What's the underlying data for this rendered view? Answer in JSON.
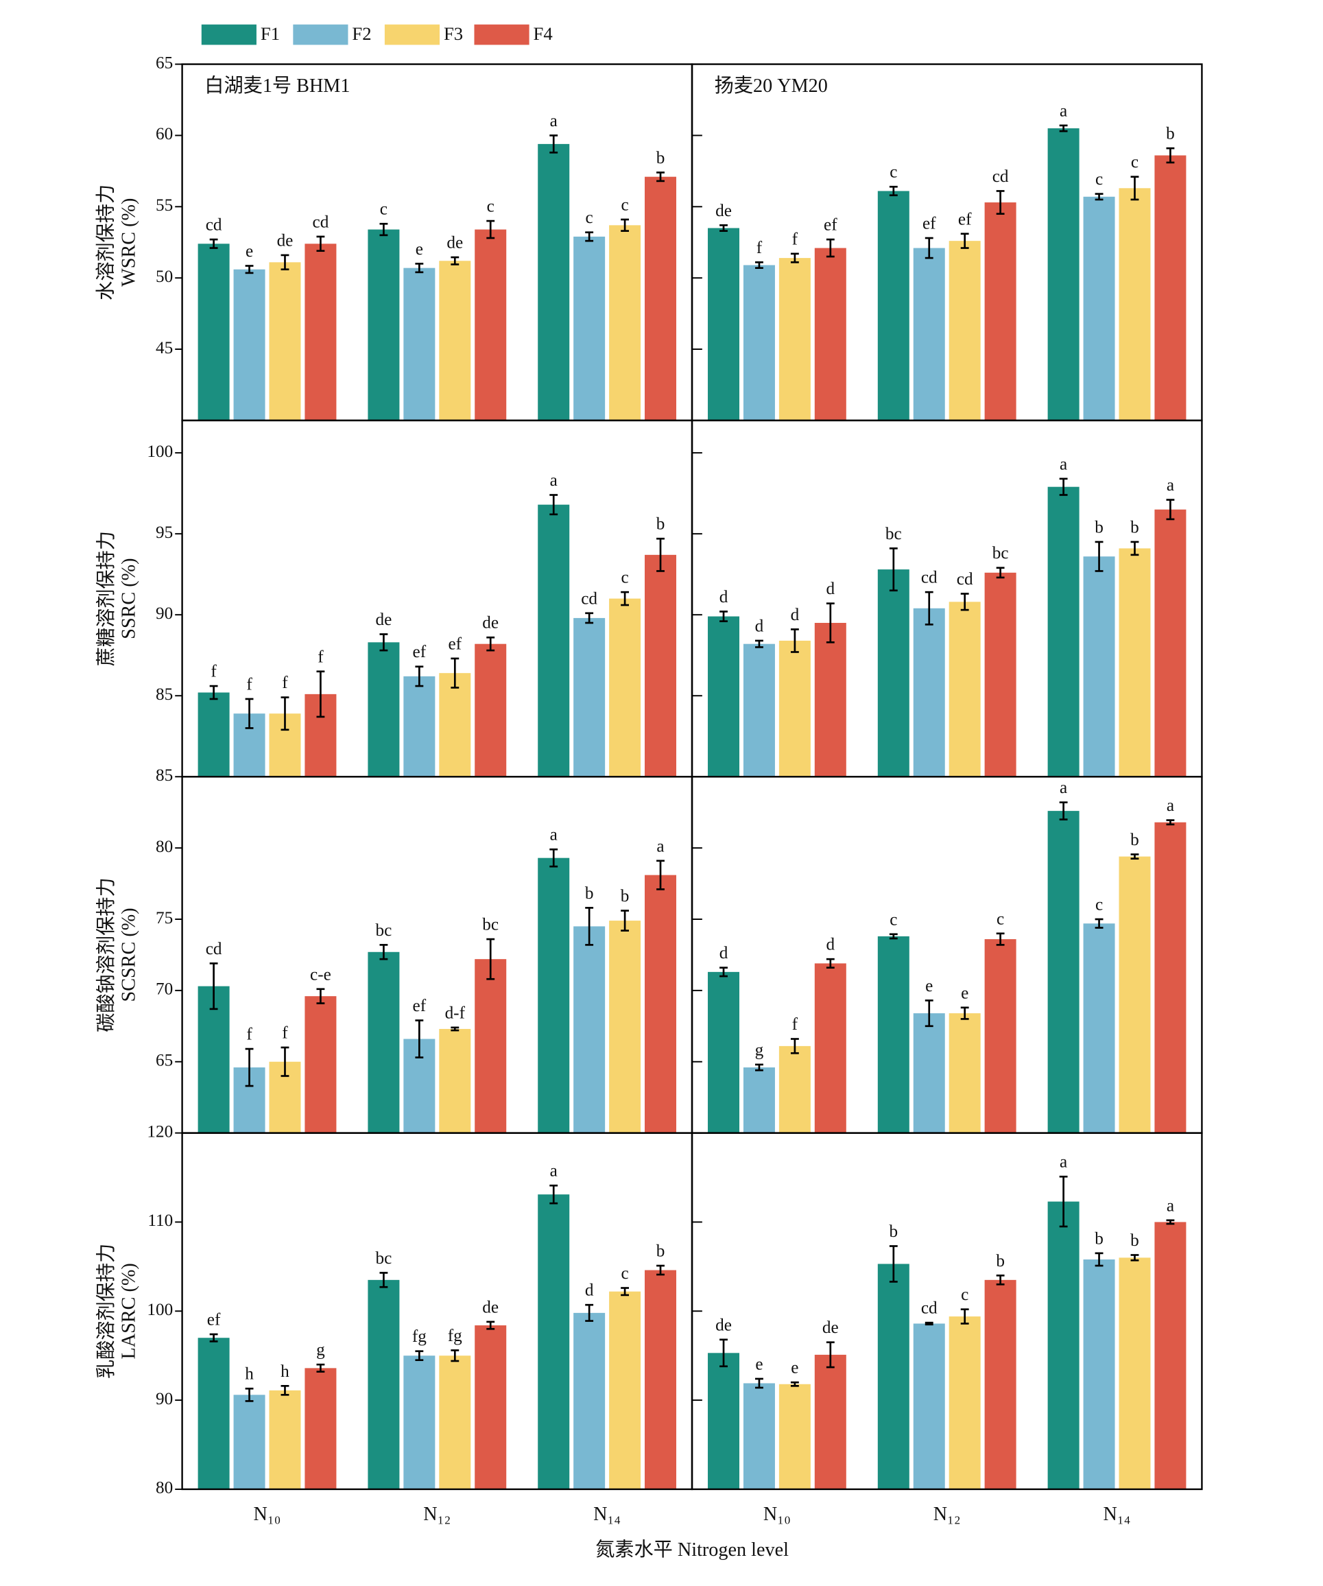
{
  "chart_data": {
    "type": "bar",
    "xlabel": "氮素水平 Nitrogen level",
    "categories": [
      "N₁₀",
      "N₁₂",
      "N₁₄"
    ],
    "series": [
      {
        "name": "F1",
        "color": "#1b8f80"
      },
      {
        "name": "F2",
        "color": "#79b8d2"
      },
      {
        "name": "F3",
        "color": "#f7d46e"
      },
      {
        "name": "F4",
        "color": "#de5a48"
      }
    ],
    "rows": [
      {
        "ylabel": [
          "水溶剂保持力",
          "WSRC (%)"
        ],
        "ylim": [
          40,
          65
        ],
        "yticks": [
          45,
          50,
          55,
          60,
          65
        ],
        "panels": [
          {
            "title": "白湖麦1号 BHM1",
            "series": [
              {
                "values": [
                  52.4,
                  53.4,
                  59.4
                ],
                "errors": [
                  0.3,
                  0.4,
                  0.6
                ],
                "letters": [
                  "cd",
                  "c",
                  "a"
                ]
              },
              {
                "values": [
                  50.6,
                  50.7,
                  52.9
                ],
                "errors": [
                  0.25,
                  0.3,
                  0.3
                ],
                "letters": [
                  "e",
                  "e",
                  "c"
                ]
              },
              {
                "values": [
                  51.1,
                  51.2,
                  53.7
                ],
                "errors": [
                  0.5,
                  0.25,
                  0.4
                ],
                "letters": [
                  "de",
                  "de",
                  "c"
                ]
              },
              {
                "values": [
                  52.4,
                  53.4,
                  57.1
                ],
                "errors": [
                  0.5,
                  0.6,
                  0.3
                ],
                "letters": [
                  "cd",
                  "c",
                  "b"
                ]
              }
            ]
          },
          {
            "title": "扬麦20 YM20",
            "series": [
              {
                "values": [
                  53.5,
                  56.1,
                  60.5
                ],
                "errors": [
                  0.2,
                  0.3,
                  0.2
                ],
                "letters": [
                  "de",
                  "c",
                  "a"
                ]
              },
              {
                "values": [
                  50.9,
                  52.1,
                  55.7
                ],
                "errors": [
                  0.2,
                  0.7,
                  0.2
                ],
                "letters": [
                  "f",
                  "ef",
                  "c"
                ]
              },
              {
                "values": [
                  51.4,
                  52.6,
                  56.3
                ],
                "errors": [
                  0.3,
                  0.5,
                  0.8
                ],
                "letters": [
                  "f",
                  "ef",
                  "c"
                ]
              },
              {
                "values": [
                  52.1,
                  55.3,
                  58.6
                ],
                "errors": [
                  0.6,
                  0.8,
                  0.5
                ],
                "letters": [
                  "ef",
                  "cd",
                  "b"
                ]
              }
            ]
          }
        ]
      },
      {
        "ylabel": [
          "蔗糖溶剂保持力",
          "SSRC (%)"
        ],
        "ylim": [
          80,
          102
        ],
        "yticks": [
          85,
          90,
          95,
          100
        ],
        "panels": [
          {
            "series": [
              {
                "values": [
                  85.2,
                  88.3,
                  96.8
                ],
                "errors": [
                  0.4,
                  0.5,
                  0.6
                ],
                "letters": [
                  "f",
                  "de",
                  "a"
                ]
              },
              {
                "values": [
                  83.9,
                  86.2,
                  89.8
                ],
                "errors": [
                  0.9,
                  0.6,
                  0.3
                ],
                "letters": [
                  "f",
                  "ef",
                  "cd"
                ]
              },
              {
                "values": [
                  83.9,
                  86.4,
                  91.0
                ],
                "errors": [
                  1.0,
                  0.9,
                  0.4
                ],
                "letters": [
                  "f",
                  "ef",
                  "c"
                ]
              },
              {
                "values": [
                  85.1,
                  88.2,
                  93.7
                ],
                "errors": [
                  1.4,
                  0.4,
                  1.0
                ],
                "letters": [
                  "f",
                  "de",
                  "b"
                ]
              }
            ]
          },
          {
            "series": [
              {
                "values": [
                  89.9,
                  92.8,
                  97.9
                ],
                "errors": [
                  0.3,
                  1.3,
                  0.5
                ],
                "letters": [
                  "d",
                  "bc",
                  "a"
                ]
              },
              {
                "values": [
                  88.2,
                  90.4,
                  93.6
                ],
                "errors": [
                  0.2,
                  1.0,
                  0.9
                ],
                "letters": [
                  "d",
                  "cd",
                  "b"
                ]
              },
              {
                "values": [
                  88.4,
                  90.8,
                  94.1
                ],
                "errors": [
                  0.7,
                  0.5,
                  0.4
                ],
                "letters": [
                  "d",
                  "cd",
                  "b"
                ]
              },
              {
                "values": [
                  89.5,
                  92.6,
                  96.5
                ],
                "errors": [
                  1.2,
                  0.3,
                  0.6
                ],
                "letters": [
                  "d",
                  "bc",
                  "a"
                ]
              }
            ]
          }
        ]
      },
      {
        "ylabel": [
          "碳酸钠溶剂保持力",
          "SCSRC (%)"
        ],
        "ylim": [
          60,
          85
        ],
        "yticks": [
          65,
          70,
          75,
          80,
          85
        ],
        "panels": [
          {
            "series": [
              {
                "values": [
                  70.3,
                  72.7,
                  79.3
                ],
                "errors": [
                  1.6,
                  0.5,
                  0.6
                ],
                "letters": [
                  "cd",
                  "bc",
                  "a"
                ]
              },
              {
                "values": [
                  64.6,
                  66.6,
                  74.5
                ],
                "errors": [
                  1.3,
                  1.3,
                  1.3
                ],
                "letters": [
                  "f",
                  "ef",
                  "b"
                ]
              },
              {
                "values": [
                  65.0,
                  67.3,
                  74.9
                ],
                "errors": [
                  1.0,
                  0.1,
                  0.7
                ],
                "letters": [
                  "f",
                  "d-f",
                  "b"
                ]
              },
              {
                "values": [
                  69.6,
                  72.2,
                  78.1
                ],
                "errors": [
                  0.5,
                  1.4,
                  1.0
                ],
                "letters": [
                  "c-e",
                  "bc",
                  "a"
                ]
              }
            ]
          },
          {
            "series": [
              {
                "values": [
                  71.3,
                  73.8,
                  82.6
                ],
                "errors": [
                  0.3,
                  0.15,
                  0.6
                ],
                "letters": [
                  "d",
                  "c",
                  "a"
                ]
              },
              {
                "values": [
                  64.6,
                  68.4,
                  74.7
                ],
                "errors": [
                  0.2,
                  0.9,
                  0.3
                ],
                "letters": [
                  "g",
                  "e",
                  "c"
                ]
              },
              {
                "values": [
                  66.1,
                  68.4,
                  79.4
                ],
                "errors": [
                  0.5,
                  0.4,
                  0.15
                ],
                "letters": [
                  "f",
                  "e",
                  "b"
                ]
              },
              {
                "values": [
                  71.9,
                  73.6,
                  81.8
                ],
                "errors": [
                  0.3,
                  0.4,
                  0.15
                ],
                "letters": [
                  "d",
                  "c",
                  "a"
                ]
              }
            ]
          }
        ]
      },
      {
        "ylabel": [
          "乳酸溶剂保持力",
          "LASRC (%)"
        ],
        "ylim": [
          80,
          120
        ],
        "yticks": [
          80,
          90,
          100,
          110,
          120
        ],
        "panels": [
          {
            "series": [
              {
                "values": [
                  97.0,
                  103.5,
                  113.1
                ],
                "errors": [
                  0.4,
                  0.8,
                  1.0
                ],
                "letters": [
                  "ef",
                  "bc",
                  "a"
                ]
              },
              {
                "values": [
                  90.6,
                  95.0,
                  99.8
                ],
                "errors": [
                  0.7,
                  0.5,
                  0.9
                ],
                "letters": [
                  "h",
                  "fg",
                  "d"
                ]
              },
              {
                "values": [
                  91.1,
                  95.0,
                  102.2
                ],
                "errors": [
                  0.5,
                  0.6,
                  0.4
                ],
                "letters": [
                  "h",
                  "fg",
                  "c"
                ]
              },
              {
                "values": [
                  93.6,
                  98.4,
                  104.6
                ],
                "errors": [
                  0.4,
                  0.4,
                  0.5
                ],
                "letters": [
                  "g",
                  "de",
                  "b"
                ]
              }
            ]
          },
          {
            "series": [
              {
                "values": [
                  95.3,
                  105.3,
                  112.3
                ],
                "errors": [
                  1.5,
                  2.0,
                  2.8
                ],
                "letters": [
                  "de",
                  "b",
                  "a"
                ]
              },
              {
                "values": [
                  91.9,
                  98.6,
                  105.8
                ],
                "errors": [
                  0.5,
                  0.1,
                  0.7
                ],
                "letters": [
                  "e",
                  "cd",
                  "b"
                ]
              },
              {
                "values": [
                  91.8,
                  99.4,
                  106.0
                ],
                "errors": [
                  0.2,
                  0.8,
                  0.3
                ],
                "letters": [
                  "e",
                  "c",
                  "b"
                ]
              },
              {
                "values": [
                  95.1,
                  103.5,
                  110.0
                ],
                "errors": [
                  1.4,
                  0.5,
                  0.2
                ],
                "letters": [
                  "de",
                  "b",
                  "a"
                ]
              }
            ]
          }
        ]
      }
    ]
  }
}
